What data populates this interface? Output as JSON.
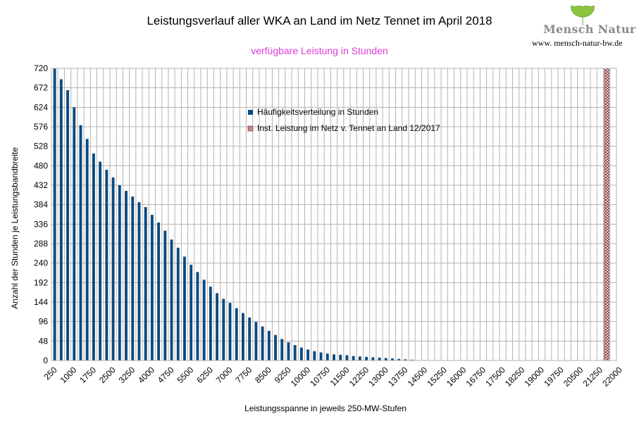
{
  "chart_data": {
    "type": "bar",
    "title": "Leistungsverlauf aller WKA an Land im Netz Tennet im April 2018",
    "subtitle": "verfügbare Leistung in Stunden",
    "xlabel": "Leistungsspanne in jeweils 250-MW-Stufen",
    "ylabel": "Anzahl der Stunden je Leistungsbandbreite",
    "ylim": [
      0,
      720
    ],
    "ytick_step": 48,
    "yticks": [
      "0",
      "48",
      "96",
      "144",
      "192",
      "240",
      "288",
      "336",
      "384",
      "432",
      "480",
      "528",
      "576",
      "624",
      "672",
      "720"
    ],
    "x_start": 250,
    "x_step": 250,
    "x_count": 87,
    "xtick_labels": [
      "250",
      "1000",
      "1750",
      "2500",
      "3250",
      "4000",
      "4750",
      "5500",
      "6250",
      "7000",
      "7750",
      "8500",
      "9250",
      "10000",
      "10750",
      "11500",
      "12250",
      "13000",
      "13750",
      "14500",
      "15250",
      "16000",
      "16750",
      "17500",
      "18250",
      "19000",
      "19750",
      "20500",
      "21250",
      "22000"
    ],
    "grid": true,
    "legend_placement": "top-center",
    "series": [
      {
        "name": "Häufigkeitsverteilung in Stunden",
        "color": "#0c4a7e",
        "x": [
          250,
          500,
          750,
          1000,
          1250,
          1500,
          1750,
          2000,
          2250,
          2500,
          2750,
          3000,
          3250,
          3500,
          3750,
          4000,
          4250,
          4500,
          4750,
          5000,
          5250,
          5500,
          5750,
          6000,
          6250,
          6500,
          6750,
          7000,
          7250,
          7500,
          7750,
          8000,
          8250,
          8500,
          8750,
          9000,
          9250,
          9500,
          9750,
          10000,
          10250,
          10500,
          10750,
          11000,
          11250,
          11500,
          11750,
          12000,
          12250,
          12500,
          12750,
          13000,
          13250,
          13500,
          13750,
          14000,
          14250,
          14500
        ],
        "values": [
          720,
          693,
          666,
          624,
          580,
          546,
          510,
          490,
          470,
          451,
          432,
          418,
          404,
          390,
          378,
          359,
          340,
          320,
          298,
          278,
          256,
          236,
          218,
          199,
          182,
          166,
          152,
          142,
          129,
          117,
          106,
          95,
          84,
          73,
          63,
          53,
          45,
          38,
          32,
          27,
          23,
          20,
          17,
          15,
          14,
          13,
          11,
          10,
          9,
          8,
          7,
          6,
          5,
          4,
          3,
          2,
          1,
          1
        ]
      },
      {
        "name": "Inst. Leistung im Netz v. Tennet an Land 12/2017",
        "color": "#7a1a1a",
        "x": [
          21500
        ],
        "values": [
          720
        ]
      }
    ]
  },
  "logo": {
    "text": "Mensch Natur",
    "url": "www. mensch-natur-bw.de",
    "leaf_color": "#8cc63f"
  }
}
